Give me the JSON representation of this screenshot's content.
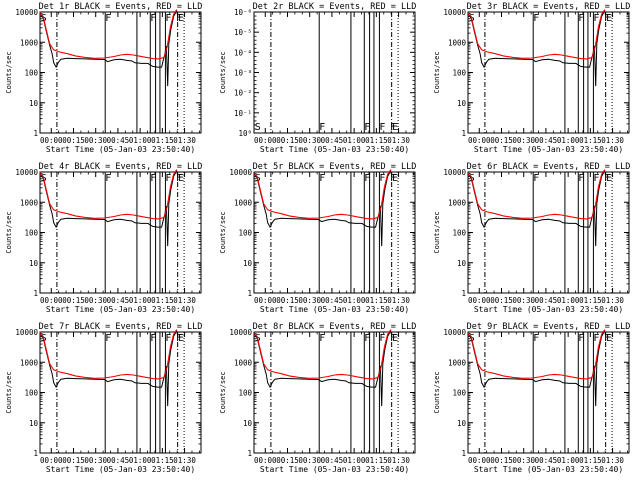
{
  "chart_data": [
    {
      "type": "line",
      "title": "Det 1r BLACK = Events, RED = LLD",
      "xlabel": "Start Time (05-Jan-03 23:50:40)",
      "ylabel": "Counts/sec",
      "xticks": [
        "00:00",
        "00:15",
        "00:30",
        "00:45",
        "01:00",
        "01:15",
        "01:30"
      ],
      "yticks": [
        "1",
        "10",
        "100",
        "1000",
        "10000"
      ],
      "ylim": [
        1,
        10000
      ],
      "ylog": true,
      "series_colors": {
        "events": "#000000",
        "lld": "#ff0000"
      },
      "flags": [
        "S",
        "F",
        "F",
        "F",
        "F",
        "E"
      ]
    },
    {
      "type": "line",
      "title": "Det 2r BLACK = Events, RED = LLD",
      "xlabel": "Start Time (05-Jan-03 23:50:40)",
      "ylabel": "Counts/sec",
      "xticks": [
        "00:00",
        "00:15",
        "00:30",
        "00:45",
        "01:00",
        "01:15",
        "01:30"
      ],
      "yticks": [
        "10⁰",
        "10⁻¹",
        "10⁻²",
        "10⁻³",
        "10⁻⁴",
        "10⁻⁵",
        "10⁻⁶"
      ],
      "ylim": [
        0,
        6
      ],
      "ylog": false,
      "series_colors": {
        "events": "#000000",
        "lld": "#ff0000"
      },
      "flags": [
        "S",
        "F",
        "F",
        "F",
        "F",
        "E"
      ]
    },
    {
      "type": "line",
      "title": "Det 3r BLACK = Events, RED = LLD",
      "xlabel": "Start Time (05-Jan-03 23:50:40)",
      "ylabel": "Counts/sec",
      "xticks": [
        "00:00",
        "00:15",
        "00:30",
        "00:45",
        "01:00",
        "01:15",
        "01:30"
      ],
      "yticks": [
        "1",
        "10",
        "100",
        "1000",
        "10000"
      ],
      "ylim": [
        1,
        10000
      ],
      "ylog": true,
      "series_colors": {
        "events": "#000000",
        "lld": "#ff0000"
      },
      "flags": [
        "S",
        "F",
        "F",
        "F",
        "F",
        "E"
      ]
    },
    {
      "type": "line",
      "title": "Det 4r BLACK = Events, RED = LLD",
      "xlabel": "Start Time (05-Jan-03 23:50:40)",
      "ylabel": "Counts/sec",
      "xticks": [
        "00:00",
        "00:15",
        "00:30",
        "00:45",
        "01:00",
        "01:15",
        "01:30"
      ],
      "yticks": [
        "1",
        "10",
        "100",
        "1000",
        "10000"
      ],
      "ylim": [
        1,
        10000
      ],
      "ylog": true,
      "series_colors": {
        "events": "#000000",
        "lld": "#ff0000"
      },
      "flags": [
        "S",
        "F",
        "F",
        "F",
        "F",
        "E"
      ]
    },
    {
      "type": "line",
      "title": "Det 5r BLACK = Events, RED = LLD",
      "xlabel": "Start Time (05-Jan-03 23:50:40)",
      "ylabel": "Counts/sec",
      "xticks": [
        "00:00",
        "00:15",
        "00:30",
        "00:45",
        "01:00",
        "01:15",
        "01:30"
      ],
      "yticks": [
        "1",
        "10",
        "100",
        "1000",
        "10000"
      ],
      "ylim": [
        1,
        10000
      ],
      "ylog": true,
      "series_colors": {
        "events": "#000000",
        "lld": "#ff0000"
      },
      "flags": [
        "S",
        "F",
        "F",
        "F",
        "F",
        "E"
      ]
    },
    {
      "type": "line",
      "title": "Det 6r BLACK = Events, RED = LLD",
      "xlabel": "Start Time (05-Jan-03 23:50:40)",
      "ylabel": "Counts/sec",
      "xticks": [
        "00:00",
        "00:15",
        "00:30",
        "00:45",
        "01:00",
        "01:15",
        "01:30"
      ],
      "yticks": [
        "1",
        "10",
        "100",
        "1000",
        "10000"
      ],
      "ylim": [
        1,
        10000
      ],
      "ylog": true,
      "series_colors": {
        "events": "#000000",
        "lld": "#ff0000"
      },
      "flags": [
        "S",
        "F",
        "F",
        "F",
        "F",
        "E"
      ]
    },
    {
      "type": "line",
      "title": "Det 7r BLACK = Events, RED = LLD",
      "xlabel": "Start Time (05-Jan-03 23:50:40)",
      "ylabel": "Counts/sec",
      "xticks": [
        "00:00",
        "00:15",
        "00:30",
        "00:45",
        "01:00",
        "01:15",
        "01:30"
      ],
      "yticks": [
        "1",
        "10",
        "100",
        "1000",
        "10000"
      ],
      "ylim": [
        1,
        10000
      ],
      "ylog": true,
      "series_colors": {
        "events": "#000000",
        "lld": "#ff0000"
      },
      "flags": [
        "S",
        "F",
        "F",
        "F",
        "F",
        "E"
      ]
    },
    {
      "type": "line",
      "title": "Det 8r BLACK = Events, RED = LLD",
      "xlabel": "Start Time (05-Jan-03 23:50:40)",
      "ylabel": "Counts/sec",
      "xticks": [
        "00:00",
        "00:15",
        "00:30",
        "00:45",
        "01:00",
        "01:15",
        "01:30"
      ],
      "yticks": [
        "1",
        "10",
        "100",
        "1000",
        "10000"
      ],
      "ylim": [
        1,
        10000
      ],
      "ylog": true,
      "series_colors": {
        "events": "#000000",
        "lld": "#ff0000"
      },
      "flags": [
        "S",
        "F",
        "F",
        "F",
        "F",
        "E"
      ]
    },
    {
      "type": "line",
      "title": "Det 9r BLACK = Events, RED = LLD",
      "xlabel": "Start Time (05-Jan-03 23:50:40)",
      "ylabel": "Counts/sec",
      "xticks": [
        "00:00",
        "00:15",
        "00:30",
        "00:45",
        "01:00",
        "01:15",
        "01:30"
      ],
      "yticks": [
        "1",
        "10",
        "100",
        "1000",
        "10000"
      ],
      "ylim": [
        1,
        10000
      ],
      "ylog": true,
      "series_colors": {
        "events": "#000000",
        "lld": "#ff0000"
      },
      "flags": [
        "S",
        "F",
        "F",
        "F",
        "F",
        "E"
      ]
    }
  ]
}
